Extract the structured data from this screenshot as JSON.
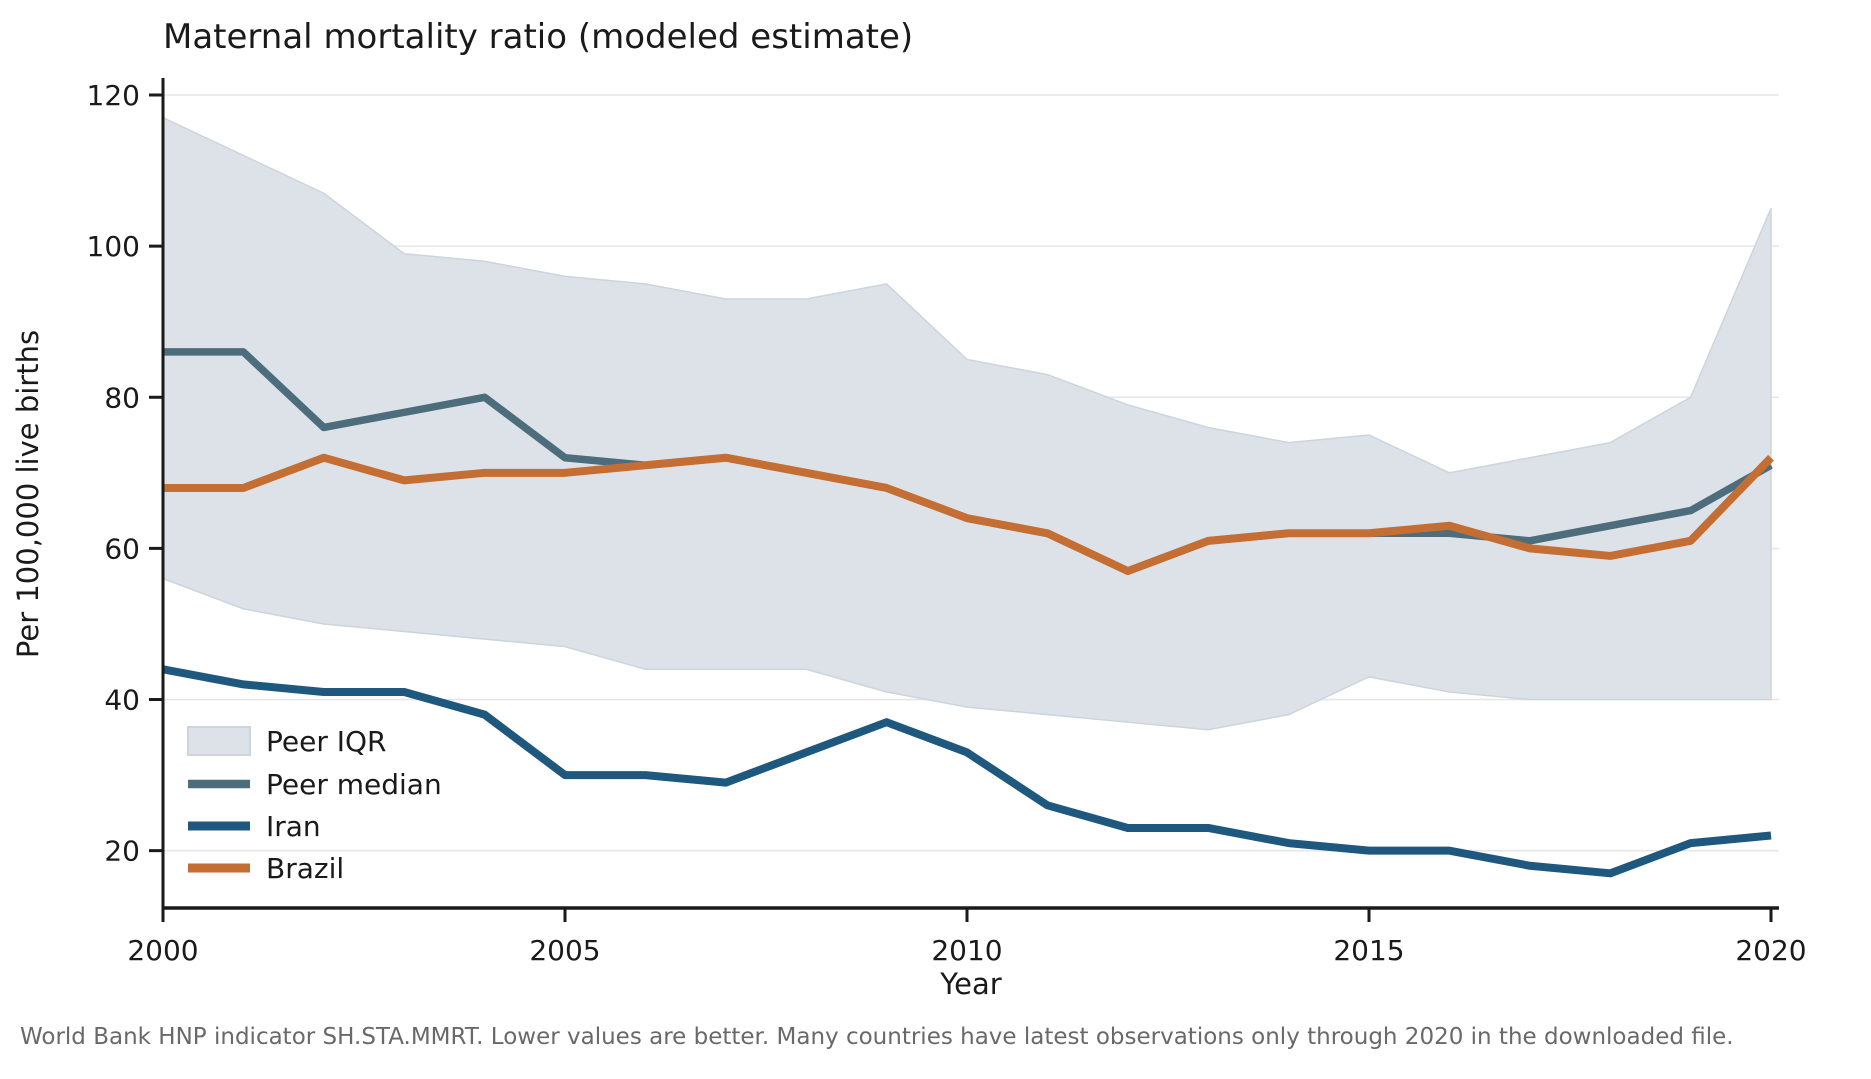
{
  "title": "Maternal mortality ratio (modeled estimate)",
  "footnote": "World Bank HNP indicator SH.STA.MMRT. Lower values are better. Many countries have latest observations only through 2020 in the downloaded file.",
  "chart_data": {
    "type": "line",
    "title": "Maternal mortality ratio (modeled estimate)",
    "xlabel": "Year",
    "ylabel": "Per 100,000 live births",
    "xlim": [
      2000,
      2020
    ],
    "ylim": [
      12,
      122
    ],
    "xticks": [
      2000,
      2005,
      2010,
      2015,
      2020
    ],
    "yticks": [
      20,
      40,
      60,
      80,
      100,
      120
    ],
    "grid": "horizontal-only",
    "legend_position": "lower-left-inside",
    "x": [
      2000,
      2001,
      2002,
      2003,
      2004,
      2005,
      2006,
      2007,
      2008,
      2009,
      2010,
      2011,
      2012,
      2013,
      2014,
      2015,
      2016,
      2017,
      2018,
      2019,
      2020
    ],
    "band": {
      "name": "Peer IQR",
      "color": "#dce2e8",
      "edge_color": "#cbd5dc",
      "upper": [
        117,
        112,
        107,
        99,
        98,
        96,
        95,
        93,
        93,
        95,
        85,
        83,
        79,
        76,
        74,
        75,
        70,
        72,
        74,
        80,
        105
      ],
      "lower": [
        56,
        52,
        50,
        49,
        48,
        47,
        44,
        44,
        44,
        41,
        39,
        38,
        37,
        36,
        38,
        43,
        41,
        40,
        40,
        40,
        40
      ]
    },
    "series": [
      {
        "name": "Peer median",
        "color": "#4d6d7c",
        "width": 7.5,
        "values": [
          86,
          86,
          76,
          78,
          80,
          72,
          71,
          72,
          70,
          68,
          64,
          62,
          57,
          61,
          62,
          62,
          62,
          61,
          63,
          65,
          71
        ]
      },
      {
        "name": "Iran",
        "color": "#1f587f",
        "width": 8,
        "values": [
          44,
          42,
          41,
          41,
          38,
          30,
          30,
          29,
          33,
          37,
          33,
          26,
          23,
          23,
          21,
          20,
          20,
          18,
          17,
          21,
          22
        ]
      },
      {
        "name": "Brazil",
        "color": "#c46e33",
        "width": 8,
        "values": [
          68,
          68,
          72,
          69,
          70,
          70,
          71,
          72,
          70,
          68,
          64,
          62,
          57,
          61,
          62,
          62,
          63,
          60,
          59,
          61,
          72
        ]
      }
    ]
  },
  "style": {
    "grid_color": "#e6e6e6",
    "spine_color": "#1a1a1a",
    "text_color": "#1a1a1a",
    "footnote_color": "#696969",
    "background": "#ffffff"
  }
}
